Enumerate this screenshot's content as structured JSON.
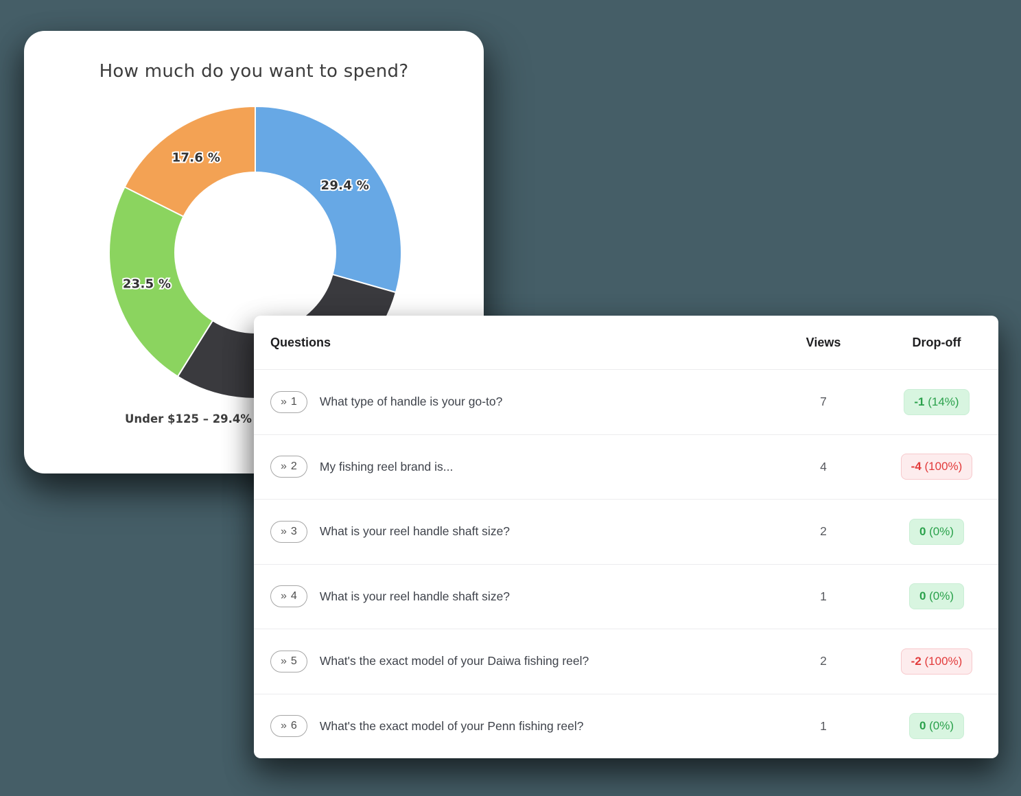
{
  "background_color": "#455e67",
  "chart_card": {
    "title": "How much do you want to spend?",
    "caption": "Under $125 – 29.4%"
  },
  "chart_data": {
    "type": "pie",
    "donut": true,
    "title": "How much do you want to spend?",
    "caption": "Under $125 – 29.4%",
    "slices": [
      {
        "label": "Under $125",
        "value": 29.4,
        "pct_label": "29.4 %",
        "color": "#67a8e5",
        "label_visible": true
      },
      {
        "label": "",
        "value": 29.5,
        "pct_label": "",
        "color": "#3a3a3e",
        "label_visible": false
      },
      {
        "label": "",
        "value": 23.5,
        "pct_label": "23.5 %",
        "color": "#8bd45f",
        "label_visible": true
      },
      {
        "label": "",
        "value": 17.6,
        "pct_label": "17.6 %",
        "color": "#f3a254",
        "label_visible": true
      }
    ],
    "legend_position": "none",
    "grid": false
  },
  "table": {
    "pill_prefix": "»",
    "headers": {
      "questions": "Questions",
      "views": "Views",
      "dropoff": "Drop-off"
    },
    "rows": [
      {
        "num": "1",
        "question": "What type of handle is your go-to?",
        "views": "7",
        "drop_value": "-1",
        "drop_pct": "(14%)",
        "drop_status": "green"
      },
      {
        "num": "2",
        "question": "My fishing reel brand is...",
        "views": "4",
        "drop_value": "-4",
        "drop_pct": "(100%)",
        "drop_status": "red"
      },
      {
        "num": "3",
        "question": "What is your reel handle shaft size?",
        "views": "2",
        "drop_value": "0",
        "drop_pct": "(0%)",
        "drop_status": "green"
      },
      {
        "num": "4",
        "question": "What is your reel handle shaft size?",
        "views": "1",
        "drop_value": "0",
        "drop_pct": "(0%)",
        "drop_status": "green"
      },
      {
        "num": "5",
        "question": "What's the exact model of your Daiwa fishing reel?",
        "views": "2",
        "drop_value": "-2",
        "drop_pct": "(100%)",
        "drop_status": "red"
      },
      {
        "num": "6",
        "question": "What's the exact model of your Penn fishing reel?",
        "views": "1",
        "drop_value": "0",
        "drop_pct": "(0%)",
        "drop_status": "green"
      }
    ]
  }
}
